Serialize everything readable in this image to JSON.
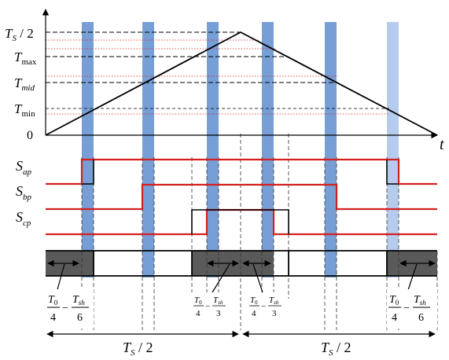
{
  "axis": {
    "t_label": "t",
    "y_labels": {
      "ts_half": {
        "main": "T",
        "sub": "S",
        "rest": " / 2"
      },
      "tmax": {
        "main": "T",
        "sub": "max"
      },
      "tmid": {
        "main": "T",
        "sub": "mid"
      },
      "tmin": {
        "main": "T",
        "sub": "min"
      },
      "zero": "0"
    }
  },
  "signals": [
    {
      "main": "S",
      "sub": "ap"
    },
    {
      "main": "S",
      "sub": "bp"
    },
    {
      "main": "S",
      "sub": "cp"
    }
  ],
  "fractions": {
    "f1": {
      "a_num": "T",
      "a_num_sub": "0",
      "a_den": "4",
      "minus": "−",
      "b_num": "T",
      "b_num_sub": "sh",
      "b_den": "6"
    },
    "f2": {
      "a_num": "T",
      "a_num_sub": "0",
      "a_den": "4",
      "minus": "−",
      "b_num": "T",
      "b_num_sub": "sh",
      "b_den": "3"
    },
    "f3": {
      "a_num": "T",
      "a_num_sub": "0",
      "a_den": "4",
      "minus": "−",
      "b_num": "T",
      "b_num_sub": "sh",
      "b_den": "3"
    },
    "f4": {
      "a_num": "T",
      "a_num_sub": "0",
      "a_den": "4",
      "minus": "−",
      "b_num": "T",
      "b_num_sub": "sh",
      "b_den": "6"
    }
  },
  "period": {
    "left": {
      "main": "T",
      "sub": "S",
      "rest": " / 2"
    },
    "right": {
      "main": "T",
      "sub": "S",
      "rest": " / 2"
    }
  },
  "colors": {
    "axis": "#000000",
    "signal": "#d42020",
    "band": "#4a7fc8",
    "band_light": "#a9c3ea",
    "dotted": "#d42020",
    "shade": "#5a5a5a"
  }
}
